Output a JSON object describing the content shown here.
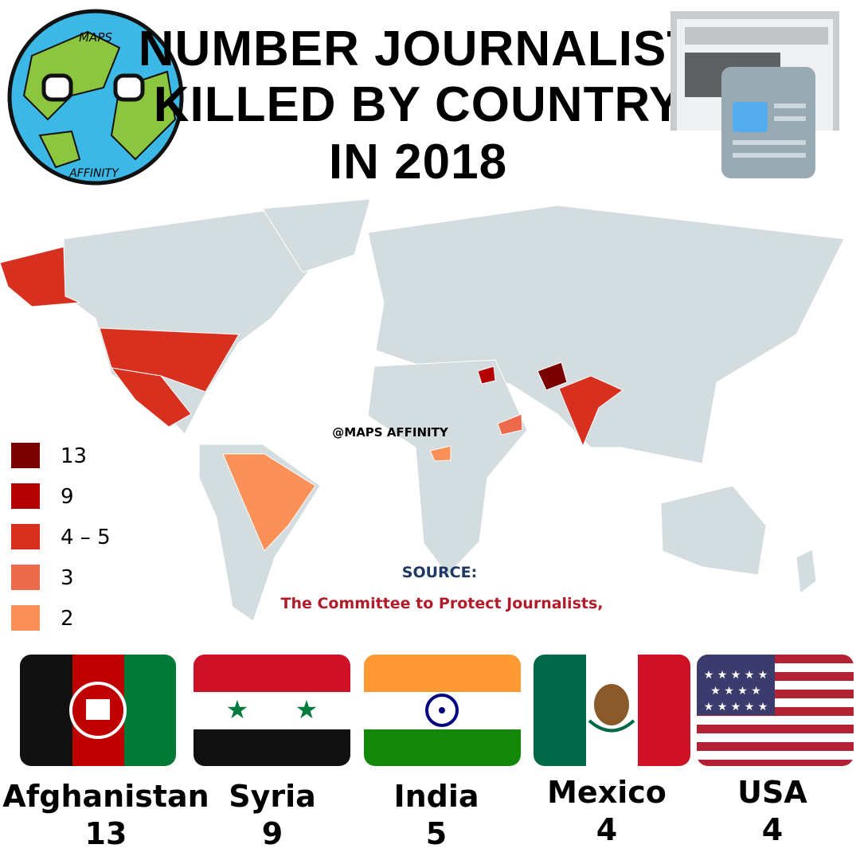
{
  "logo": {
    "top": "MAPS",
    "bottom": "AFFINITY"
  },
  "title": {
    "lines": [
      "NUMBER JOURNALIST",
      "KILLED BY COUNTRY",
      "IN 2018"
    ]
  },
  "watermark": "@MAPS AFFINITY",
  "legend": {
    "items": [
      {
        "label": 13,
        "color": "#7a0000"
      },
      {
        "label": 9,
        "color": "#b40000"
      },
      {
        "label": "4 – 5",
        "color": "#d7301f"
      },
      {
        "label": 3,
        "color": "#ee6a4d"
      },
      {
        "label": 2,
        "color": "#fb9159"
      }
    ]
  },
  "source": {
    "heading": "SOURCE:",
    "text": "The Committee to Protect Journalists,"
  },
  "countries": [
    {
      "name": "Afghanistan",
      "count": 13
    },
    {
      "name": "Syria",
      "count": 9
    },
    {
      "name": "India",
      "count": 5
    },
    {
      "name": "Mexico",
      "count": 4
    },
    {
      "name": "USA",
      "count": 4
    }
  ]
}
